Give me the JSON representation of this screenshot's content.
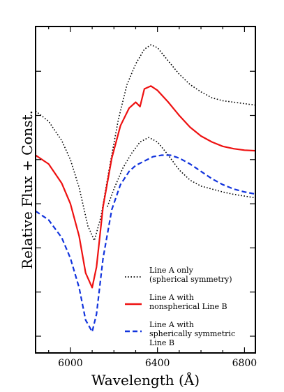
{
  "chart_data": {
    "type": "line",
    "xlabel": "Wavelength (Å)",
    "ylabel": "Relative Flux + Const.",
    "xlim": [
      5840,
      6850
    ],
    "ylim": [
      0,
      1
    ],
    "x_ticks": [
      6000,
      6400,
      6800
    ],
    "x_tick_labels": [
      "6000",
      "6400",
      "6800"
    ],
    "y_tick_labels_shown": false,
    "grid": false,
    "legend_position": "lower-right",
    "series": [
      {
        "name": "Line A only\n(spherical symmetry)",
        "style": "dotted",
        "color": "#000000",
        "x": [
          5840,
          5900,
          5960,
          6000,
          6040,
          6080,
          6110,
          6140,
          6180,
          6220,
          6260,
          6300,
          6340,
          6370,
          6400,
          6450,
          6500,
          6550,
          6600,
          6650,
          6700,
          6750,
          6800,
          6850
        ],
        "y": [
          0.765,
          0.73,
          0.665,
          0.6,
          0.505,
          0.375,
          0.325,
          0.405,
          0.575,
          0.735,
          0.855,
          0.925,
          0.975,
          0.99,
          0.98,
          0.935,
          0.89,
          0.855,
          0.83,
          0.81,
          0.8,
          0.795,
          0.79,
          0.785
        ]
      },
      {
        "name": "Line A only\n(spherical symmetry)",
        "style": "dotted",
        "color": "#000000",
        "x": [
          6170,
          6200,
          6240,
          6280,
          6320,
          6360,
          6400,
          6450,
          6500,
          6550,
          6600,
          6650,
          6700,
          6750,
          6800,
          6850
        ],
        "y": [
          0.44,
          0.5,
          0.57,
          0.62,
          0.66,
          0.675,
          0.66,
          0.615,
          0.565,
          0.53,
          0.51,
          0.5,
          0.49,
          0.482,
          0.476,
          0.47
        ]
      },
      {
        "name": "Line A with\nnonspherical Line B",
        "style": "solid",
        "color": "#ee1111",
        "x": [
          5840,
          5900,
          5960,
          6000,
          6040,
          6070,
          6100,
          6120,
          6150,
          6190,
          6230,
          6270,
          6300,
          6320,
          6340,
          6370,
          6400,
          6450,
          6500,
          6550,
          6600,
          6650,
          6700,
          6750,
          6800,
          6850
        ],
        "y": [
          0.615,
          0.585,
          0.52,
          0.45,
          0.34,
          0.215,
          0.165,
          0.235,
          0.44,
          0.605,
          0.715,
          0.775,
          0.795,
          0.78,
          0.84,
          0.85,
          0.835,
          0.795,
          0.75,
          0.71,
          0.68,
          0.66,
          0.645,
          0.637,
          0.632,
          0.63
        ]
      },
      {
        "name": "Line A with\nspherically symmetric\nLine B",
        "style": "dashed",
        "color": "#1133dd",
        "x": [
          5840,
          5900,
          5960,
          6000,
          6040,
          6070,
          6100,
          6120,
          6150,
          6190,
          6230,
          6270,
          6300,
          6340,
          6380,
          6420,
          6460,
          6500,
          6550,
          6600,
          6650,
          6700,
          6750,
          6800,
          6850
        ],
        "y": [
          0.425,
          0.395,
          0.335,
          0.265,
          0.165,
          0.055,
          0.015,
          0.075,
          0.265,
          0.43,
          0.515,
          0.56,
          0.58,
          0.595,
          0.61,
          0.615,
          0.615,
          0.605,
          0.585,
          0.56,
          0.535,
          0.515,
          0.5,
          0.49,
          0.483
        ]
      }
    ],
    "legend": [
      {
        "label_lines": [
          "Line A only",
          "(spherical symmetry)"
        ],
        "style": "dotted",
        "color": "#000000"
      },
      {
        "label_lines": [
          "Line A with",
          "nonspherical Line B"
        ],
        "style": "solid",
        "color": "#ee1111"
      },
      {
        "label_lines": [
          "Line A with",
          "spherically symmetric",
          "Line B"
        ],
        "style": "dashed",
        "color": "#1133dd"
      }
    ]
  }
}
